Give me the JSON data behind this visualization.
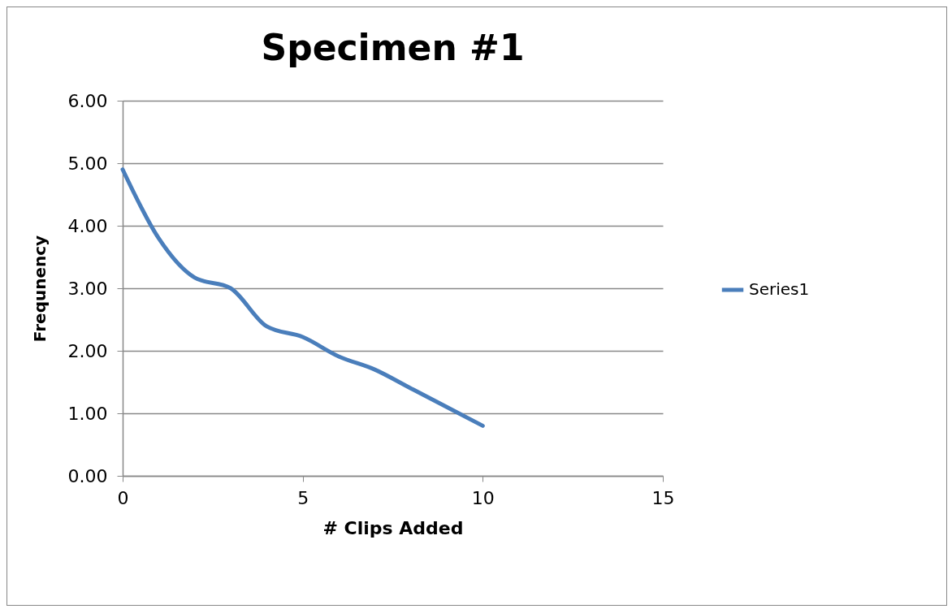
{
  "chart_data": {
    "type": "line",
    "title": "Specimen #1",
    "xlabel": "# Clips Added",
    "ylabel": "Frequnency",
    "x": [
      0,
      1,
      2,
      3,
      4,
      5,
      6,
      7,
      8,
      9,
      10
    ],
    "series": [
      {
        "name": "Series1",
        "color": "#4a7ebb",
        "values": [
          4.9,
          3.8,
          3.17,
          3.0,
          2.39,
          2.22,
          1.91,
          1.7,
          1.4,
          1.1,
          0.8
        ]
      }
    ],
    "xlim": [
      0,
      15
    ],
    "xticks": [
      0,
      5,
      10,
      15
    ],
    "ylim": [
      0,
      6
    ],
    "yticks": [
      {
        "value": 0,
        "label": "0.00"
      },
      {
        "value": 1,
        "label": "1.00"
      },
      {
        "value": 2,
        "label": "2.00"
      },
      {
        "value": 3,
        "label": "3.00"
      },
      {
        "value": 4,
        "label": "4.00"
      },
      {
        "value": 5,
        "label": "5.00"
      },
      {
        "value": 6,
        "label": "6.00"
      }
    ],
    "grid": "y",
    "legend": "right",
    "marker": "none",
    "line_style": "solid"
  }
}
